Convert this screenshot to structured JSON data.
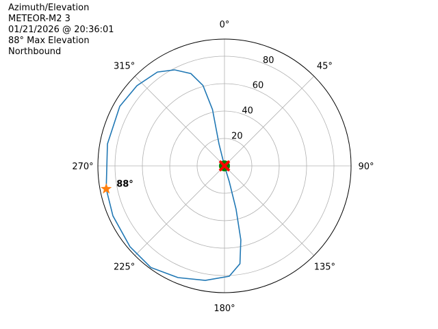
{
  "header": {
    "lines": [
      "Azimuth/Elevation",
      "METEOR-M2 3",
      "01/21/2026 @ 20:36:01",
      "88° Max Elevation",
      "Northbound"
    ]
  },
  "chart_data": {
    "type": "polar-line",
    "theta_zero": "north",
    "theta_direction": "clockwise",
    "theta_tick_labels": [
      "0°",
      "45°",
      "90°",
      "135°",
      "180°",
      "225°",
      "270°",
      "315°"
    ],
    "r_ticks": [
      20,
      40,
      60,
      80
    ],
    "r_tick_labels": [
      "20",
      "40",
      "60",
      "80"
    ],
    "rlim": [
      0,
      92.5
    ],
    "grid": true,
    "colors": {
      "track": "#1f77b4",
      "max_marker": "#ff7f0e",
      "start_marker": "#008000",
      "end_marker": "#ff0000"
    },
    "series": [
      {
        "azimuth_deg": [
          346,
          346,
          348,
          345,
          340,
          332.5,
          324.4,
          312.4,
          299.6,
          280.6,
          259,
          245.9,
          229.5,
          216,
          202.6,
          189.5,
          177.5,
          171,
          167.5,
          165,
          163,
          163
        ],
        "r": [
          0,
          16.5,
          42,
          60.7,
          71.6,
          79,
          84.2,
          86.7,
          88,
          87,
          88,
          89.3,
          90.8,
          91.6,
          88.3,
          84.7,
          80.6,
          72.3,
          55.3,
          32.6,
          12,
          0
        ]
      }
    ],
    "max_marker": {
      "azimuth_deg": 259,
      "r": 88,
      "label": "88°",
      "marker": "star"
    },
    "start_marker": {
      "azimuth_deg": 0,
      "r": 0,
      "marker": "circle"
    },
    "end_marker": {
      "azimuth_deg": 0,
      "r": 0,
      "marker": "X"
    }
  }
}
